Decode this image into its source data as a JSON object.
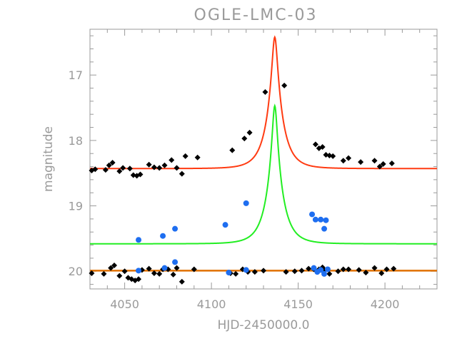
{
  "chart_data": {
    "type": "scatter",
    "title": "OGLE-LMC-03",
    "xlabel": "HJD-2450000.0",
    "ylabel": "magnitude",
    "xlim": [
      4030,
      4230
    ],
    "ylim": [
      20.27,
      16.3
    ],
    "y_inverted": true,
    "grid": false,
    "x_ticks": [
      4050,
      4100,
      4150,
      4200
    ],
    "y_ticks": [
      17,
      18,
      19,
      20
    ],
    "x_tick_labels": [
      "4050",
      "4100",
      "4150",
      "4200"
    ],
    "y_tick_labels": [
      "17",
      "18",
      "19",
      "20"
    ],
    "colors": {
      "axis": "#9a9a9a",
      "black_points": "#000000",
      "blue_points": "#1e6ef0",
      "red_curve": "#ff3b12",
      "green_curve": "#22ee22",
      "baseline": "#e07000"
    },
    "curves": [
      {
        "color": "red",
        "peak_x": 4136.5,
        "peak_mag": 16.42,
        "baseline_mag": 18.43,
        "width_days": 9
      },
      {
        "color": "green",
        "peak_x": 4136.5,
        "peak_mag": 17.47,
        "baseline_mag": 19.58,
        "width_days": 9
      },
      {
        "color": "orange",
        "constant_mag": 19.99
      }
    ],
    "series": [
      {
        "marker": "diamond",
        "color": "black",
        "points": [
          [
            4031,
            18.46
          ],
          [
            4033,
            18.44
          ],
          [
            4039,
            18.45
          ],
          [
            4041,
            18.38
          ],
          [
            4043,
            18.34
          ],
          [
            4047,
            18.47
          ],
          [
            4049,
            18.42
          ],
          [
            4053,
            18.43
          ],
          [
            4055,
            18.53
          ],
          [
            4057,
            18.54
          ],
          [
            4059,
            18.52
          ],
          [
            4064,
            18.37
          ],
          [
            4067,
            18.41
          ],
          [
            4070,
            18.42
          ],
          [
            4073,
            18.38
          ],
          [
            4077,
            18.3
          ],
          [
            4080,
            18.42
          ],
          [
            4083,
            18.51
          ],
          [
            4085,
            18.24
          ],
          [
            4092,
            18.26
          ],
          [
            4112,
            18.15
          ],
          [
            4119,
            17.97
          ],
          [
            4122,
            17.88
          ],
          [
            4131,
            17.26
          ],
          [
            4142,
            17.16
          ],
          [
            4160,
            18.06
          ],
          [
            4162,
            18.12
          ],
          [
            4164,
            18.1
          ],
          [
            4166,
            18.22
          ],
          [
            4168,
            18.23
          ],
          [
            4170,
            18.24
          ],
          [
            4176,
            18.31
          ],
          [
            4179,
            18.27
          ],
          [
            4186,
            18.33
          ],
          [
            4194,
            18.31
          ],
          [
            4197,
            18.4
          ],
          [
            4199,
            18.36
          ],
          [
            4204,
            18.35
          ],
          [
            4031,
            20.03
          ],
          [
            4038,
            20.04
          ],
          [
            4042,
            19.95
          ],
          [
            4044,
            19.91
          ],
          [
            4047,
            20.07
          ],
          [
            4050,
            20.0
          ],
          [
            4052,
            20.1
          ],
          [
            4054,
            20.12
          ],
          [
            4056,
            20.14
          ],
          [
            4058,
            20.12
          ],
          [
            4060,
            19.98
          ],
          [
            4064,
            19.96
          ],
          [
            4067,
            20.03
          ],
          [
            4070,
            20.04
          ],
          [
            4072,
            19.97
          ],
          [
            4075,
            19.97
          ],
          [
            4078,
            20.05
          ],
          [
            4080,
            19.95
          ],
          [
            4083,
            20.16
          ],
          [
            4090,
            19.97
          ],
          [
            4111,
            20.03
          ],
          [
            4114,
            20.04
          ],
          [
            4118,
            19.97
          ],
          [
            4121,
            20.01
          ],
          [
            4125,
            20.01
          ],
          [
            4130,
            19.99
          ],
          [
            4143,
            20.01
          ],
          [
            4148,
            20.0
          ],
          [
            4152,
            19.99
          ],
          [
            4156,
            19.96
          ],
          [
            4159,
            19.97
          ],
          [
            4162,
            19.97
          ],
          [
            4164,
            19.94
          ],
          [
            4165,
            19.98
          ],
          [
            4168,
            20.04
          ],
          [
            4173,
            20.0
          ],
          [
            4176,
            19.97
          ],
          [
            4179,
            19.97
          ],
          [
            4185,
            19.98
          ],
          [
            4189,
            20.02
          ],
          [
            4194,
            19.95
          ],
          [
            4198,
            20.03
          ],
          [
            4201,
            19.97
          ],
          [
            4205,
            19.96
          ]
        ]
      },
      {
        "marker": "circle",
        "color": "blue",
        "points": [
          [
            4058,
            19.52
          ],
          [
            4072,
            19.46
          ],
          [
            4079,
            19.35
          ],
          [
            4108,
            19.29
          ],
          [
            4120,
            18.96
          ],
          [
            4158,
            19.13
          ],
          [
            4160,
            19.21
          ],
          [
            4163,
            19.21
          ],
          [
            4165,
            19.35
          ],
          [
            4166,
            19.22
          ],
          [
            4058,
            19.99
          ],
          [
            4073,
            19.95
          ],
          [
            4079,
            19.86
          ],
          [
            4110,
            20.02
          ],
          [
            4120,
            19.98
          ],
          [
            4159,
            19.95
          ],
          [
            4161,
            20.01
          ],
          [
            4163,
            19.98
          ],
          [
            4165,
            20.04
          ],
          [
            4167,
            19.97
          ]
        ]
      }
    ]
  }
}
